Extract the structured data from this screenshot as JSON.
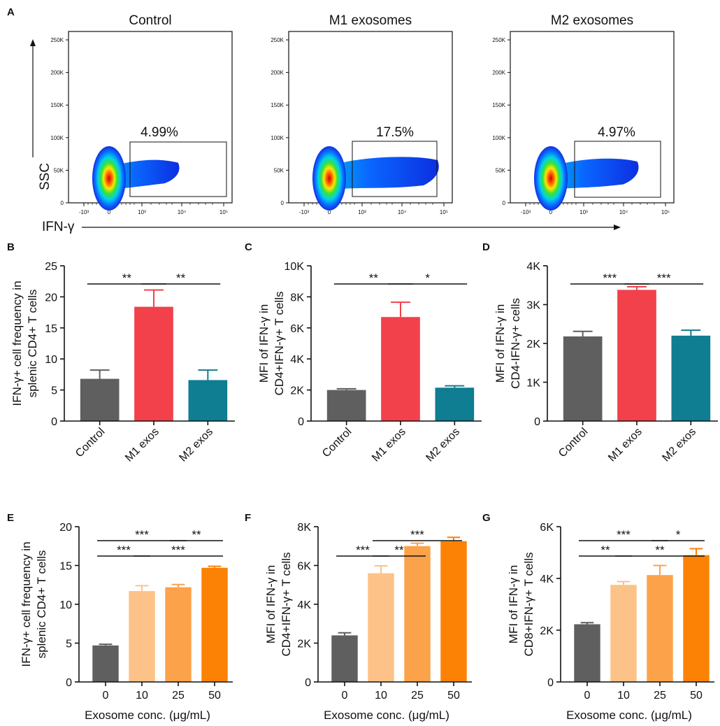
{
  "colors": {
    "control": "#5f5f5f",
    "m1": "#f2414a",
    "m2": "#0f7d92",
    "c0": "#5f5f5f",
    "c10": "#fcc287",
    "c25": "#fca24a",
    "c50": "#fc8205"
  },
  "panel_a": {
    "letter": "A",
    "y_axis_label": "SSC",
    "x_axis_label": "IFN-γ",
    "yticks": [
      "250K",
      "200K",
      "150K",
      "100K",
      "50K",
      "0"
    ],
    "xticks": [
      "-10³",
      "0",
      "10³",
      "10⁴",
      "10⁵"
    ],
    "plots": [
      {
        "title": "Control",
        "pct": "4.99%",
        "spread": 0.55
      },
      {
        "title": "M1 exosomes",
        "pct": "17.5%",
        "spread": 1.0
      },
      {
        "title": "M2 exosomes",
        "pct": "4.97%",
        "spread": 0.75
      }
    ]
  },
  "chart_data": [
    {
      "id": "B",
      "letter": "B",
      "type": "bar",
      "ylabel_lines": [
        "IFN-γ+ cell frequency in",
        "splenic CD4+ T cells"
      ],
      "xlabel": "",
      "ylim": [
        0,
        25
      ],
      "yticks": [
        0,
        5,
        10,
        15,
        20,
        25
      ],
      "ytick_labels": [
        "0",
        "5",
        "10",
        "15",
        "20",
        "25"
      ],
      "categories": [
        "Control",
        "M1 exos",
        "M2 exos"
      ],
      "values": [
        6.8,
        18.4,
        6.6
      ],
      "errors": [
        1.4,
        2.7,
        1.6
      ],
      "colors": [
        "#5f5f5f",
        "#f2414a",
        "#0f7d92"
      ],
      "rotate_labels": true,
      "significance": [
        {
          "from": 0,
          "to": 1,
          "label": "**",
          "level": 0
        },
        {
          "from": 1,
          "to": 2,
          "label": "**",
          "level": 0
        }
      ]
    },
    {
      "id": "C",
      "letter": "C",
      "type": "bar",
      "ylabel_lines": [
        "MFI of IFN-γ in",
        "CD4+IFN-γ+ T cells"
      ],
      "xlabel": "",
      "ylim": [
        0,
        10000
      ],
      "yticks": [
        0,
        2000,
        4000,
        6000,
        8000,
        10000
      ],
      "ytick_labels": [
        "0",
        "2K",
        "4K",
        "6K",
        "8K",
        "10K"
      ],
      "categories": [
        "Control",
        "M1 exos",
        "M2 exos"
      ],
      "values": [
        2000,
        6700,
        2150
      ],
      "errors": [
        80,
        950,
        120
      ],
      "colors": [
        "#5f5f5f",
        "#f2414a",
        "#0f7d92"
      ],
      "rotate_labels": true,
      "significance": [
        {
          "from": 0,
          "to": 1,
          "label": "**",
          "level": 0
        },
        {
          "from": 1,
          "to": 2,
          "label": "*",
          "level": 0
        }
      ]
    },
    {
      "id": "D",
      "letter": "D",
      "type": "bar",
      "ylabel_lines": [
        "MFI of IFN-γ in",
        "CD4-IFN-γ+ cells"
      ],
      "xlabel": "",
      "ylim": [
        0,
        4000
      ],
      "yticks": [
        0,
        1000,
        2000,
        3000,
        4000
      ],
      "ytick_labels": [
        "0",
        "1K",
        "2K",
        "3K",
        "4K"
      ],
      "categories": [
        "Control",
        "M1 exos",
        "M2 exos"
      ],
      "values": [
        2180,
        3380,
        2200
      ],
      "errors": [
        130,
        80,
        140
      ],
      "colors": [
        "#5f5f5f",
        "#f2414a",
        "#0f7d92"
      ],
      "rotate_labels": true,
      "significance": [
        {
          "from": 0,
          "to": 1,
          "label": "***",
          "level": 0
        },
        {
          "from": 1,
          "to": 2,
          "label": "***",
          "level": 0
        }
      ]
    },
    {
      "id": "E",
      "letter": "E",
      "type": "bar",
      "ylabel_lines": [
        "IFN-γ+ cell frequency in",
        "splenic CD4+ T cells"
      ],
      "xlabel": "Exosome conc. (μg/mL)",
      "ylim": [
        0,
        20
      ],
      "yticks": [
        0,
        5,
        10,
        15,
        20
      ],
      "ytick_labels": [
        "0",
        "5",
        "10",
        "15",
        "20"
      ],
      "categories": [
        "0",
        "10",
        "25",
        "50"
      ],
      "values": [
        4.7,
        11.7,
        12.2,
        14.7
      ],
      "errors": [
        0.15,
        0.7,
        0.35,
        0.2
      ],
      "colors": [
        "#5f5f5f",
        "#fcc287",
        "#fca24a",
        "#fc8205"
      ],
      "rotate_labels": false,
      "significance": [
        {
          "from": 0,
          "to": 1,
          "label": "***",
          "level": 0
        },
        {
          "from": 1,
          "to": 3,
          "label": "***",
          "level": 0
        },
        {
          "from": 0,
          "to": 2,
          "label": "***",
          "level": 1
        },
        {
          "from": 2,
          "to": 3,
          "label": "**",
          "level": 1
        }
      ]
    },
    {
      "id": "F",
      "letter": "F",
      "type": "bar",
      "ylabel_lines": [
        "MFI of IFN-γ in",
        "CD4+IFN-γ+ T cells"
      ],
      "xlabel": "Exosome conc. (μg/mL)",
      "ylim": [
        0,
        8000
      ],
      "yticks": [
        0,
        2000,
        4000,
        6000,
        8000
      ],
      "ytick_labels": [
        "0",
        "2K",
        "4K",
        "6K",
        "8K"
      ],
      "categories": [
        "0",
        "10",
        "25",
        "50"
      ],
      "values": [
        2400,
        5600,
        7000,
        7250
      ],
      "errors": [
        130,
        380,
        150,
        200
      ],
      "colors": [
        "#5f5f5f",
        "#fcc287",
        "#fca24a",
        "#fc8205"
      ],
      "rotate_labels": false,
      "significance": [
        {
          "from": 0,
          "to": 1,
          "label": "***",
          "level": 0
        },
        {
          "from": 1,
          "to": 2,
          "label": "**",
          "level": 0
        },
        {
          "from": 1,
          "to": 3,
          "label": "***",
          "level": 1
        }
      ]
    },
    {
      "id": "G",
      "letter": "G",
      "type": "bar",
      "ylabel_lines": [
        "MFI of IFN-γ in",
        "CD8+IFN-γ+ T cells"
      ],
      "xlabel": "Exosome conc. (μg/mL)",
      "ylim": [
        0,
        6000
      ],
      "yticks": [
        0,
        2000,
        4000,
        6000
      ],
      "ytick_labels": [
        "0",
        "2K",
        "4K",
        "6K"
      ],
      "categories": [
        "0",
        "10",
        "25",
        "50"
      ],
      "values": [
        2230,
        3750,
        4130,
        4900
      ],
      "errors": [
        60,
        130,
        370,
        250
      ],
      "colors": [
        "#5f5f5f",
        "#fcc287",
        "#fca24a",
        "#fc8205"
      ],
      "rotate_labels": false,
      "significance": [
        {
          "from": 0,
          "to": 1,
          "label": "**",
          "level": 0
        },
        {
          "from": 1,
          "to": 3,
          "label": "**",
          "level": 0
        },
        {
          "from": 0,
          "to": 2,
          "label": "***",
          "level": 1
        },
        {
          "from": 2,
          "to": 3,
          "label": "*",
          "level": 1
        }
      ]
    }
  ]
}
